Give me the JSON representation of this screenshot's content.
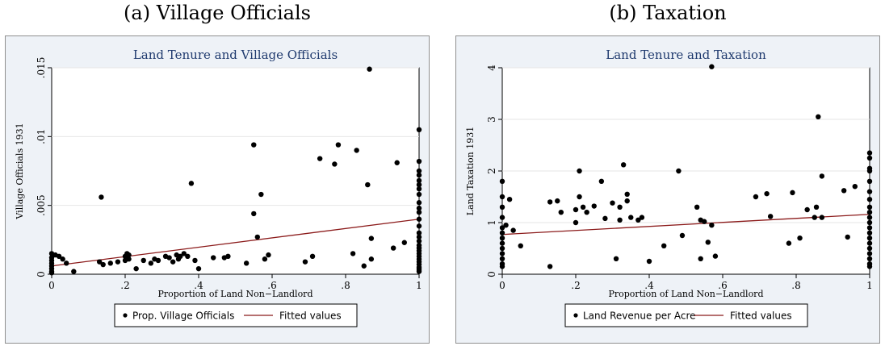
{
  "panels": [
    {
      "label": "(a) Village Officials"
    },
    {
      "label": "(b) Taxation"
    }
  ],
  "chart_data": [
    {
      "type": "scatter",
      "title": "Land Tenure and Village Officials",
      "xlabel": "Proportion of Land Non−Landlord",
      "ylabel": "Village Officials 1931",
      "xlim": [
        0,
        1
      ],
      "ylim": [
        0,
        0.015
      ],
      "xticks": [
        0,
        0.2,
        0.4,
        0.6,
        0.8,
        1
      ],
      "xtick_labels": [
        "0",
        ".2",
        ".4",
        ".6",
        ".8",
        "1"
      ],
      "yticks": [
        0,
        0.005,
        0.01,
        0.015
      ],
      "ytick_labels": [
        "0",
        ".005",
        ".01",
        ".015"
      ],
      "grid": true,
      "legend_position": "bottom",
      "colors": {
        "points": "#000000",
        "fit": "#8b1a1a",
        "plot_bg": "#ffffff",
        "outer_bg": "#eef2f7",
        "title": "#1f3a6e"
      },
      "series": [
        {
          "name": "Prop. Village Officials",
          "kind": "scatter",
          "points": [
            [
              0,
              0.0015
            ],
            [
              0,
              0.0012
            ],
            [
              0,
              0.001
            ],
            [
              0,
              0.0008
            ],
            [
              0,
              0.0006
            ],
            [
              0,
              0.0004
            ],
            [
              0,
              0.0002
            ],
            [
              0,
              0.0001
            ],
            [
              0.01,
              0.0014
            ],
            [
              0.02,
              0.0013
            ],
            [
              0.03,
              0.0011
            ],
            [
              0.04,
              0.0008
            ],
            [
              0.06,
              0.0002
            ],
            [
              0.13,
              0.0009
            ],
            [
              0.135,
              0.0056
            ],
            [
              0.14,
              0.0007
            ],
            [
              0.16,
              0.0008
            ],
            [
              0.18,
              0.0009
            ],
            [
              0.2,
              0.0013
            ],
            [
              0.2,
              0.001
            ],
            [
              0.205,
              0.0015
            ],
            [
              0.21,
              0.0014
            ],
            [
              0.21,
              0.0011
            ],
            [
              0.23,
              0.0004
            ],
            [
              0.25,
              0.001
            ],
            [
              0.27,
              0.0008
            ],
            [
              0.28,
              0.0011
            ],
            [
              0.29,
              0.001
            ],
            [
              0.31,
              0.0013
            ],
            [
              0.32,
              0.0012
            ],
            [
              0.33,
              0.0009
            ],
            [
              0.34,
              0.0014
            ],
            [
              0.345,
              0.0011
            ],
            [
              0.35,
              0.0013
            ],
            [
              0.36,
              0.0015
            ],
            [
              0.37,
              0.0013
            ],
            [
              0.38,
              0.0066
            ],
            [
              0.39,
              0.001
            ],
            [
              0.4,
              0.0004
            ],
            [
              0.44,
              0.0012
            ],
            [
              0.47,
              0.0012
            ],
            [
              0.48,
              0.0013
            ],
            [
              0.53,
              0.0008
            ],
            [
              0.55,
              0.0094
            ],
            [
              0.55,
              0.0044
            ],
            [
              0.56,
              0.0027
            ],
            [
              0.57,
              0.0058
            ],
            [
              0.58,
              0.0011
            ],
            [
              0.59,
              0.0014
            ],
            [
              0.69,
              0.0009
            ],
            [
              0.71,
              0.0013
            ],
            [
              0.73,
              0.0084
            ],
            [
              0.77,
              0.008
            ],
            [
              0.78,
              0.0094
            ],
            [
              0.82,
              0.0015
            ],
            [
              0.83,
              0.009
            ],
            [
              0.85,
              0.0006
            ],
            [
              0.86,
              0.0065
            ],
            [
              0.865,
              0.0149
            ],
            [
              0.87,
              0.0026
            ],
            [
              0.87,
              0.0011
            ],
            [
              0.93,
              0.0019
            ],
            [
              0.94,
              0.0081
            ],
            [
              0.96,
              0.0023
            ],
            [
              1,
              0.0105
            ],
            [
              1,
              0.0082
            ],
            [
              1,
              0.0075
            ],
            [
              1,
              0.0072
            ],
            [
              1,
              0.0068
            ],
            [
              1,
              0.0065
            ],
            [
              1,
              0.0062
            ],
            [
              1,
              0.0058
            ],
            [
              1,
              0.0052
            ],
            [
              1,
              0.0048
            ],
            [
              1,
              0.0045
            ],
            [
              1,
              0.004
            ],
            [
              1,
              0.0035
            ],
            [
              1,
              0.003
            ],
            [
              1,
              0.0027
            ],
            [
              1,
              0.0024
            ],
            [
              1,
              0.0021
            ],
            [
              1,
              0.0019
            ],
            [
              1,
              0.0017
            ],
            [
              1,
              0.0015
            ],
            [
              1,
              0.0013
            ],
            [
              1,
              0.0011
            ],
            [
              1,
              0.0009
            ],
            [
              1,
              0.0007
            ],
            [
              1,
              0.0005
            ],
            [
              1,
              0.0004
            ],
            [
              1,
              0.0003
            ],
            [
              1,
              0.0002
            ]
          ]
        },
        {
          "name": "Fitted values",
          "kind": "line",
          "points": [
            [
              0,
              0.0006
            ],
            [
              1,
              0.004
            ]
          ]
        }
      ]
    },
    {
      "type": "scatter",
      "title": "Land Tenure and Taxation",
      "xlabel": "Proportion of Land Non−Landlord",
      "ylabel": "Land Taxation 1931",
      "xlim": [
        0,
        1
      ],
      "ylim": [
        0,
        4
      ],
      "xticks": [
        0,
        0.2,
        0.4,
        0.6,
        0.8,
        1
      ],
      "xtick_labels": [
        "0",
        ".2",
        ".4",
        ".6",
        ".8",
        "1"
      ],
      "yticks": [
        0,
        1,
        2,
        3,
        4
      ],
      "ytick_labels": [
        "0",
        "1",
        "2",
        "3",
        "4"
      ],
      "grid": true,
      "legend_position": "bottom",
      "colors": {
        "points": "#000000",
        "fit": "#8b1a1a",
        "plot_bg": "#ffffff",
        "outer_bg": "#eef2f7",
        "title": "#1f3a6e"
      },
      "series": [
        {
          "name": "Land Revenue per Acre",
          "kind": "scatter",
          "points": [
            [
              0,
              1.8
            ],
            [
              0,
              1.5
            ],
            [
              0,
              1.3
            ],
            [
              0,
              1.1
            ],
            [
              0,
              0.9
            ],
            [
              0,
              0.8
            ],
            [
              0,
              0.7
            ],
            [
              0,
              0.6
            ],
            [
              0,
              0.5
            ],
            [
              0,
              0.4
            ],
            [
              0,
              0.3
            ],
            [
              0,
              0.2
            ],
            [
              0,
              0.15
            ],
            [
              0.01,
              0.95
            ],
            [
              0.02,
              1.45
            ],
            [
              0.03,
              0.85
            ],
            [
              0.05,
              0.55
            ],
            [
              0.13,
              1.4
            ],
            [
              0.13,
              0.15
            ],
            [
              0.15,
              1.42
            ],
            [
              0.16,
              1.2
            ],
            [
              0.2,
              1.0
            ],
            [
              0.2,
              1.25
            ],
            [
              0.21,
              2.0
            ],
            [
              0.21,
              1.5
            ],
            [
              0.22,
              1.3
            ],
            [
              0.23,
              1.2
            ],
            [
              0.25,
              1.32
            ],
            [
              0.27,
              1.8
            ],
            [
              0.28,
              1.08
            ],
            [
              0.3,
              1.38
            ],
            [
              0.31,
              0.3
            ],
            [
              0.32,
              1.05
            ],
            [
              0.32,
              1.3
            ],
            [
              0.33,
              2.12
            ],
            [
              0.34,
              1.55
            ],
            [
              0.34,
              1.42
            ],
            [
              0.35,
              1.1
            ],
            [
              0.37,
              1.05
            ],
            [
              0.38,
              1.1
            ],
            [
              0.4,
              0.25
            ],
            [
              0.44,
              0.55
            ],
            [
              0.48,
              2.0
            ],
            [
              0.49,
              0.75
            ],
            [
              0.53,
              1.3
            ],
            [
              0.54,
              1.05
            ],
            [
              0.54,
              0.3
            ],
            [
              0.55,
              1.02
            ],
            [
              0.56,
              0.62
            ],
            [
              0.57,
              4.02
            ],
            [
              0.57,
              0.95
            ],
            [
              0.58,
              0.35
            ],
            [
              0.69,
              1.5
            ],
            [
              0.72,
              1.56
            ],
            [
              0.73,
              1.12
            ],
            [
              0.78,
              0.6
            ],
            [
              0.79,
              1.58
            ],
            [
              0.81,
              0.7
            ],
            [
              0.83,
              1.25
            ],
            [
              0.85,
              1.1
            ],
            [
              0.855,
              1.3
            ],
            [
              0.86,
              3.05
            ],
            [
              0.87,
              1.1
            ],
            [
              0.87,
              1.9
            ],
            [
              0.93,
              1.62
            ],
            [
              0.94,
              0.72
            ],
            [
              0.96,
              1.7
            ],
            [
              1,
              2.35
            ],
            [
              1,
              2.25
            ],
            [
              1,
              2.05
            ],
            [
              1,
              2.0
            ],
            [
              1,
              1.8
            ],
            [
              1,
              1.6
            ],
            [
              1,
              1.45
            ],
            [
              1,
              1.3
            ],
            [
              1,
              1.2
            ],
            [
              1,
              1.1
            ],
            [
              1,
              1.0
            ],
            [
              1,
              0.9
            ],
            [
              1,
              0.8
            ],
            [
              1,
              0.7
            ],
            [
              1,
              0.6
            ],
            [
              1,
              0.5
            ],
            [
              1,
              0.4
            ],
            [
              1,
              0.3
            ],
            [
              1,
              0.2
            ],
            [
              1,
              0.15
            ]
          ]
        },
        {
          "name": "Fitted values",
          "kind": "line",
          "points": [
            [
              0,
              0.77
            ],
            [
              1,
              1.16
            ]
          ]
        }
      ]
    }
  ]
}
